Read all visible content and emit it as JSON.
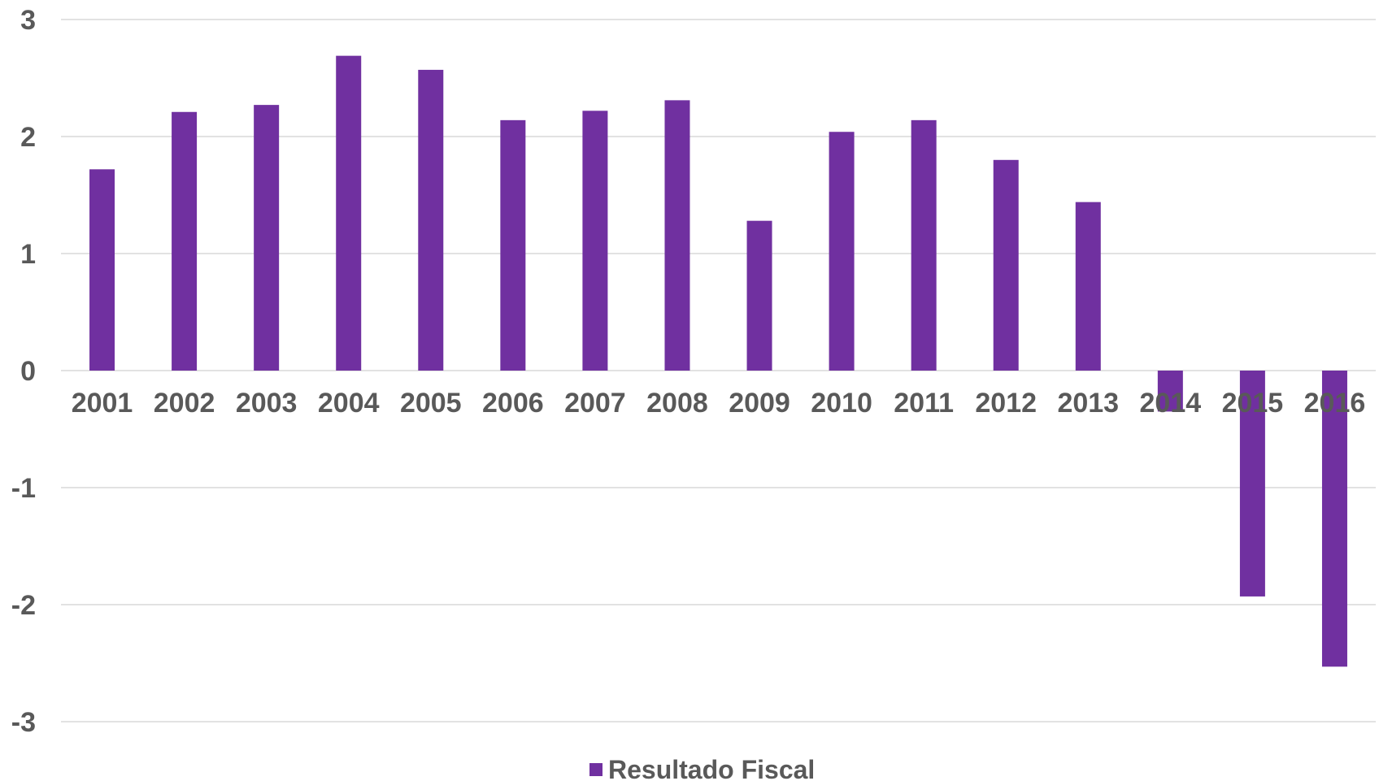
{
  "chart_data": {
    "type": "bar",
    "title": "",
    "xlabel": "",
    "ylabel": "",
    "categories": [
      "2001",
      "2002",
      "2003",
      "2004",
      "2005",
      "2006",
      "2007",
      "2008",
      "2009",
      "2010",
      "2011",
      "2012",
      "2013",
      "2014",
      "2015",
      "2016"
    ],
    "series": [
      {
        "name": "Resultado Fiscal",
        "color": "#7030a0",
        "values": [
          1.72,
          2.21,
          2.27,
          2.69,
          2.57,
          2.14,
          2.22,
          2.31,
          1.28,
          2.04,
          2.14,
          1.8,
          1.44,
          -0.35,
          -1.93,
          -2.53
        ]
      }
    ],
    "ylim": [
      -3,
      3
    ],
    "yticks": [
      "3",
      "2",
      "1",
      "0",
      "-1",
      "-2",
      "-3"
    ],
    "grid": true,
    "legend_position": "bottom"
  }
}
